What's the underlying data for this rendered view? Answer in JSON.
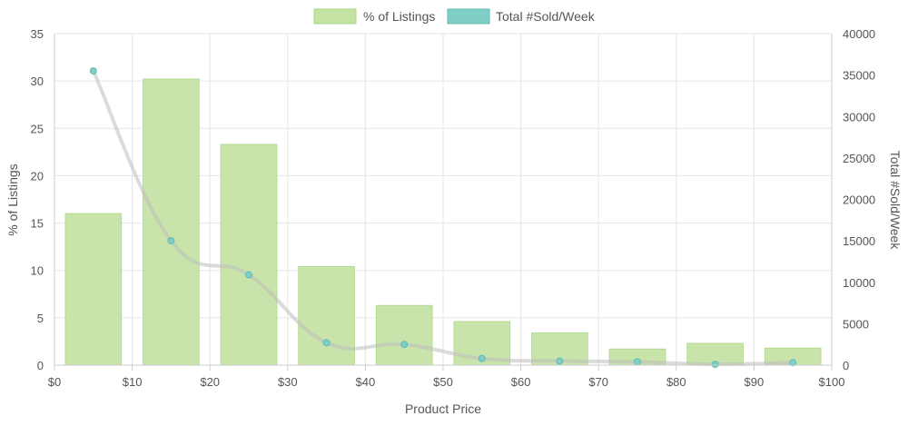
{
  "chart_data": {
    "type": "bar",
    "xlabel": "Product Price",
    "ylabel_left": "% of Listings",
    "ylabel_right": "Total #Sold/Week",
    "x_axis": {
      "min": 0,
      "max": 100,
      "ticks": [
        "$0",
        "$10",
        "$20",
        "$30",
        "$40",
        "$50",
        "$60",
        "$70",
        "$80",
        "$90",
        "$100"
      ]
    },
    "y_left": {
      "min": 0,
      "max": 35,
      "ticks": [
        "0",
        "5",
        "10",
        "15",
        "20",
        "25",
        "30",
        "35"
      ]
    },
    "y_right": {
      "min": 0,
      "max": 40000,
      "ticks": [
        "0",
        "5000",
        "10000",
        "15000",
        "20000",
        "25000",
        "30000",
        "35000",
        "40000"
      ]
    },
    "legend": {
      "placement": "top-center",
      "items": [
        {
          "label": "% of Listings",
          "color": "#c5e3a5"
        },
        {
          "label": "Total #Sold/Week",
          "color": "#7fcfc6"
        }
      ]
    },
    "grid": true,
    "series": [
      {
        "name": "% of Listings",
        "type": "bar",
        "axis": "left",
        "color": "#c5e3a5",
        "x": [
          5,
          15,
          25,
          35,
          45,
          55,
          65,
          75,
          85,
          95
        ],
        "values": [
          16,
          30.2,
          23.3,
          10.4,
          6.3,
          4.6,
          3.4,
          1.7,
          2.3,
          1.8
        ]
      },
      {
        "name": "Total #Sold/Week",
        "type": "line",
        "axis": "right",
        "color": "#7fcfc6",
        "line_color": "rgba(190,190,190,0.55)",
        "x": [
          5,
          15,
          25,
          35,
          45,
          55,
          65,
          75,
          85,
          95
        ],
        "values": [
          35500,
          15000,
          10900,
          2700,
          2500,
          800,
          500,
          400,
          100,
          300
        ]
      }
    ]
  }
}
